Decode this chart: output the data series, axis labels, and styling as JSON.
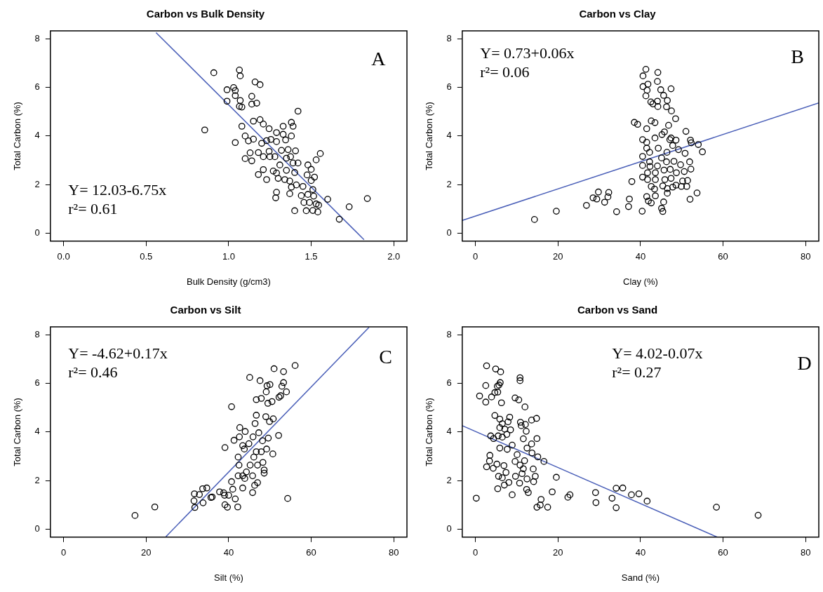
{
  "chart_data": [
    {
      "type": "scatter",
      "title": "Carbon vs Bulk Density",
      "xlabel": "Bulk Density (g/cm3)",
      "ylabel": "Total Carbon (%)",
      "xlim": [
        -0.08,
        2.08
      ],
      "xticks": [
        {
          "value": 0,
          "label": "0.0"
        },
        {
          "value": 0.5,
          "label": "0.5"
        },
        {
          "value": 1,
          "label": "1.0"
        },
        {
          "value": 1.5,
          "label": "1.5"
        },
        {
          "value": 2,
          "label": "2.0"
        }
      ],
      "ylim": [
        -0.32,
        8.32
      ],
      "yticks": [
        0,
        2,
        4,
        6,
        8
      ],
      "grid": false,
      "legend": false,
      "marker": "circle",
      "annotations": [
        "Y= 12.03-6.75x",
        "r²= 0.61",
        "A"
      ],
      "series": [
        {
          "color": "#000000",
          "x": [
            0.855,
            0.91,
            1.065,
            1.07,
            0.99,
            1.03,
            1.04,
            1.04,
            1.07,
            0.99,
            1.065,
            1.08,
            1.16,
            1.19,
            1.14,
            1.14,
            1.17,
            1.42,
            1.15,
            1.19,
            1.21,
            1.245,
            1.08,
            1.1,
            1.04,
            1.12,
            1.15,
            1.13,
            1.1,
            1.14,
            1.18,
            1.21,
            1.2,
            1.23,
            1.256,
            1.29,
            1.29,
            1.245,
            1.25,
            1.28,
            1.33,
            1.33,
            1.345,
            1.38,
            1.39,
            1.38,
            1.405,
            1.36,
            1.32,
            1.35,
            1.375,
            1.39,
            1.42,
            1.31,
            1.35,
            1.27,
            1.29,
            1.21,
            1.18,
            1.23,
            1.3,
            1.34,
            1.37,
            1.4,
            1.48,
            1.5,
            1.53,
            1.555,
            1.475,
            1.5,
            1.52,
            1.41,
            1.45,
            1.38,
            1.51,
            1.29,
            1.285,
            1.37,
            1.44,
            1.48,
            1.515,
            1.456,
            1.49,
            1.53,
            1.545,
            1.6,
            1.4,
            1.47,
            1.51,
            1.54,
            1.67,
            1.73,
            1.84
          ],
          "values": [
            4.25,
            6.6,
            6.71,
            6.47,
            5.9,
            5.99,
            5.87,
            5.66,
            5.46,
            5.43,
            5.22,
            5.19,
            6.22,
            6.11,
            5.63,
            5.31,
            5.35,
            5.02,
            4.61,
            4.67,
            4.49,
            4.3,
            4.4,
            4.0,
            3.73,
            3.8,
            3.87,
            3.31,
            3.07,
            2.98,
            3.32,
            3.15,
            3.7,
            3.81,
            3.86,
            4.14,
            3.77,
            3.37,
            3.15,
            3.15,
            4.4,
            4.07,
            3.84,
            4.56,
            4.4,
            4.0,
            3.39,
            3.44,
            3.41,
            3.09,
            3.15,
            2.89,
            2.89,
            2.81,
            2.59,
            2.56,
            2.48,
            2.62,
            2.42,
            2.21,
            2.26,
            2.21,
            2.15,
            2.5,
            2.81,
            2.63,
            3.02,
            3.28,
            2.4,
            2.17,
            2.31,
            1.99,
            1.93,
            1.9,
            1.8,
            1.69,
            1.46,
            1.63,
            1.55,
            1.6,
            1.53,
            1.27,
            1.27,
            1.21,
            1.16,
            1.4,
            0.93,
            0.93,
            0.94,
            0.88,
            0.58,
            1.09,
            1.43
          ]
        },
        {
          "type": "line",
          "color": "#4a5fb8",
          "marker": "none",
          "x": [
            0.56,
            1.82
          ],
          "values": [
            8.25,
            -0.26
          ]
        }
      ]
    },
    {
      "type": "scatter",
      "title": "Carbon vs Clay",
      "xlabel": "Clay (%)",
      "ylabel": "Total Carbon (%)",
      "xlim": [
        -3.2,
        83.2
      ],
      "xticks": [
        0,
        20,
        40,
        60,
        80
      ],
      "ylim": [
        -0.32,
        8.32
      ],
      "yticks": [
        0,
        2,
        4,
        6,
        8
      ],
      "grid": false,
      "legend": false,
      "marker": "circle",
      "annotations": [
        "Y= 0.73+0.06x",
        "r²= 0.06",
        "B"
      ],
      "series": [
        {
          "color": "#000000",
          "x": [
            14.3,
            19.6,
            26.9,
            28.5,
            29.4,
            29.8,
            31.3,
            32.1,
            32.3,
            34.2,
            37.1,
            37.3,
            37.9,
            38.5,
            39.3,
            40.4,
            40.5,
            40.5,
            40.5,
            40.5,
            40.6,
            40.6,
            41.3,
            41.8,
            41.6,
            41.3,
            41.5,
            41.5,
            41.5,
            41.7,
            41.7,
            41.5,
            41.9,
            42.5,
            43.0,
            42.6,
            42.2,
            42.2,
            42.3,
            42.6,
            42.6,
            43.4,
            43.5,
            43.5,
            43.6,
            43.6,
            43.6,
            44.1,
            44.2,
            44.1,
            44.2,
            44.3,
            44.1,
            44.9,
            45.6,
            45.2,
            45.8,
            45.1,
            45.4,
            45.1,
            45.4,
            45.6,
            45.7,
            45.9,
            46.3,
            46.5,
            46.8,
            46.4,
            46.3,
            46.5,
            46.5,
            47.4,
            47.5,
            47.1,
            47.4,
            47.8,
            48.1,
            47.2,
            47.4,
            48.5,
            48.6,
            48.7,
            48.6,
            47.8,
            49.2,
            49.7,
            49.9,
            50.2,
            50.6,
            50.8,
            51.0,
            51.4,
            51.2,
            51.9,
            52.1,
            52.3,
            52.2,
            52.0,
            53.7,
            54.0,
            55.0
          ],
          "values": [
            0.57,
            0.91,
            1.15,
            1.46,
            1.41,
            1.7,
            1.28,
            1.5,
            1.68,
            0.89,
            1.1,
            1.41,
            2.13,
            4.56,
            4.48,
            0.91,
            3.85,
            3.16,
            2.79,
            2.31,
            6.47,
            6.03,
            6.74,
            6.13,
            5.88,
            5.65,
            4.3,
            3.74,
            3.5,
            2.49,
            2.21,
            1.51,
            1.33,
            5.4,
            5.32,
            4.62,
            3.33,
            2.94,
            2.75,
            1.93,
            1.25,
            1.82,
            4.55,
            3.92,
            1.54,
            2.21,
            2.49,
            6.24,
            6.61,
            5.43,
            5.21,
            3.5,
            2.77,
            5.9,
            5.67,
            4.06,
            4.17,
            3.1,
            1.95,
            1.03,
            0.9,
            1.29,
            2.6,
            2.21,
            5.2,
            5.46,
            4.44,
            3.33,
            2.94,
            1.84,
            1.65,
            5.94,
            5.03,
            3.85,
            3.92,
            3.61,
            2.96,
            2.63,
            2.26,
            4.71,
            3.83,
            2.49,
            1.98,
            1.9,
            3.44,
            2.82,
            1.93,
            2.15,
            2.54,
            3.29,
            4.19,
            2.17,
            1.93,
            2.94,
            3.83,
            3.72,
            2.64,
            1.4,
            1.66,
            3.65,
            3.35
          ]
        },
        {
          "type": "line",
          "color": "#4a5fb8",
          "marker": "none",
          "x": [
            -3.2,
            83.2
          ],
          "values": [
            0.53,
            5.36
          ]
        }
      ]
    },
    {
      "type": "scatter",
      "title": "Carbon vs Silt",
      "xlabel": "Silt (%)",
      "ylabel": "Total Carbon (%)",
      "xlim": [
        -3.2,
        83.2
      ],
      "xticks": [
        0,
        20,
        40,
        60,
        80
      ],
      "ylim": [
        -0.32,
        8.32
      ],
      "yticks": [
        0,
        2,
        4,
        6,
        8
      ],
      "grid": false,
      "legend": false,
      "marker": "circle",
      "annotations": [
        "Y= -4.62+0.17x",
        "r²= 0.46",
        "C"
      ],
      "series": [
        {
          "color": "#000000",
          "x": [
            17.3,
            22.1,
            31.6,
            31.8,
            31.7,
            32.9,
            33.8,
            33.7,
            34.7,
            35.7,
            36.0,
            37.8,
            38.8,
            39.0,
            39.1,
            39.7,
            40.0,
            39.1,
            40.7,
            40.7,
            41.0,
            41.6,
            42.2,
            41.3,
            42.3,
            42.3,
            42.5,
            42.7,
            42.6,
            43.4,
            43.4,
            43.4,
            43.8,
            44.0,
            43.9,
            44.3,
            44.9,
            45.1,
            45.2,
            45.8,
            45.8,
            45.9,
            46.1,
            46.3,
            46.4,
            46.7,
            46.7,
            46.7,
            47.0,
            47.0,
            47.3,
            47.6,
            47.9,
            47.9,
            48.2,
            48.3,
            48.6,
            48.6,
            49.0,
            49.1,
            49.3,
            49.5,
            49.6,
            49.2,
            50.0,
            49.9,
            50.5,
            50.7,
            50.8,
            51.0,
            52.1,
            52.2,
            52.6,
            52.9,
            53.3,
            53.3,
            54.0,
            54.3,
            56.1
          ],
          "values": [
            0.57,
            0.92,
            1.17,
            0.9,
            1.46,
            1.43,
            1.09,
            1.67,
            1.7,
            1.31,
            1.33,
            1.54,
            1.5,
            1.4,
            1.01,
            0.91,
            1.4,
            3.36,
            5.04,
            1.96,
            1.65,
            1.25,
            0.92,
            3.66,
            2.2,
            2.97,
            2.64,
            4.18,
            3.8,
            1.7,
            3.44,
            2.2,
            3.3,
            4.02,
            2.09,
            2.36,
            3.52,
            6.24,
            2.64,
            1.51,
            2.2,
            3.8,
            2.97,
            1.81,
            4.35,
            4.69,
            5.33,
            3.19,
            1.92,
            2.64,
            3.97,
            6.11,
            5.38,
            3.19,
            3.64,
            2.75,
            2.31,
            2.44,
            4.63,
            5.65,
            5.9,
            5.18,
            3.75,
            3.3,
            5.95,
            4.43,
            5.25,
            3.1,
            4.54,
            6.6,
            3.86,
            5.43,
            5.49,
            5.88,
            6.03,
            6.48,
            5.65,
            1.27,
            6.73
          ]
        },
        {
          "type": "line",
          "color": "#4a5fb8",
          "marker": "none",
          "x": [
            24.8,
            74.0
          ],
          "values": [
            -0.3,
            8.3
          ]
        }
      ]
    },
    {
      "type": "scatter",
      "title": "Carbon vs Sand",
      "xlabel": "Sand (%)",
      "ylabel": "Total Carbon (%)",
      "xlim": [
        -3.2,
        83.2
      ],
      "xticks": [
        0,
        20,
        40,
        60,
        80
      ],
      "ylim": [
        -0.32,
        8.32
      ],
      "yticks": [
        0,
        2,
        4,
        6,
        8
      ],
      "grid": false,
      "legend": false,
      "marker": "circle",
      "annotations": [
        "Y= 4.02-0.07x",
        "r²= 0.27",
        "D"
      ],
      "series": [
        {
          "color": "#000000",
          "x": [
            0.2,
            2.7,
            4.9,
            6.1,
            2.5,
            1.0,
            2.5,
            3.9,
            4.7,
            5.4,
            5.3,
            5.7,
            6.0,
            6.3,
            4.7,
            5.9,
            6.5,
            8.3,
            7.9,
            5.9,
            7.1,
            8.5,
            3.7,
            4.4,
            5.5,
            6.5,
            7.6,
            5.9,
            8.9,
            7.7,
            3.5,
            3.4,
            2.7,
            4.3,
            5.2,
            5.6,
            6.9,
            7.4,
            6.5,
            7.0,
            5.4,
            8.1,
            8.9,
            9.6,
            10.5,
            10.8,
            10.8,
            12.0,
            10.9,
            11.1,
            12.1,
            12.3,
            11.6,
            10.1,
            9.6,
            10.8,
            11.6,
            11.9,
            12.5,
            9.7,
            10.7,
            11.3,
            12.5,
            13.6,
            13.6,
            13.7,
            14.0,
            14.5,
            14.1,
            12.4,
            12.8,
            14.8,
            14.9,
            15.1,
            16.6,
            14.9,
            15.7,
            15.9,
            17.5,
            18.6,
            19.6,
            22.4,
            22.9,
            29.1,
            29.2,
            33.1,
            34.1,
            34.1,
            35.7,
            37.8,
            39.6,
            41.6,
            58.4,
            68.5
          ],
          "values": [
            1.28,
            6.72,
            6.59,
            6.47,
            5.91,
            5.48,
            5.23,
            5.44,
            5.62,
            5.64,
            5.88,
            5.93,
            6.03,
            5.2,
            4.68,
            4.53,
            4.34,
            4.61,
            4.42,
            4.18,
            4.12,
            4.09,
            3.84,
            3.73,
            3.84,
            3.79,
            3.9,
            3.34,
            3.46,
            3.29,
            3.04,
            2.81,
            2.57,
            2.51,
            2.68,
            2.18,
            2.62,
            2.34,
            2.12,
            1.82,
            1.67,
            1.93,
            1.42,
            5.4,
            5.32,
            6.23,
            6.11,
            5.03,
            4.4,
            4.26,
            4.31,
            4.03,
            3.72,
            3.07,
            2.79,
            2.64,
            2.49,
            2.82,
            3.34,
            2.18,
            1.9,
            2.29,
            2.07,
            4.49,
            3.51,
            3.14,
            2.48,
            2.18,
            1.96,
            1.64,
            1.51,
            4.56,
            3.73,
            2.98,
            2.79,
            0.91,
            1.0,
            1.23,
            0.91,
            1.54,
            2.14,
            1.32,
            1.42,
            1.51,
            1.1,
            1.28,
            1.69,
            0.89,
            1.7,
            1.42,
            1.46,
            1.16,
            0.91,
            0.58
          ]
        },
        {
          "type": "line",
          "color": "#4a5fb8",
          "marker": "none",
          "x": [
            -3.2,
            58.6
          ],
          "values": [
            4.26,
            -0.32
          ]
        }
      ]
    }
  ]
}
